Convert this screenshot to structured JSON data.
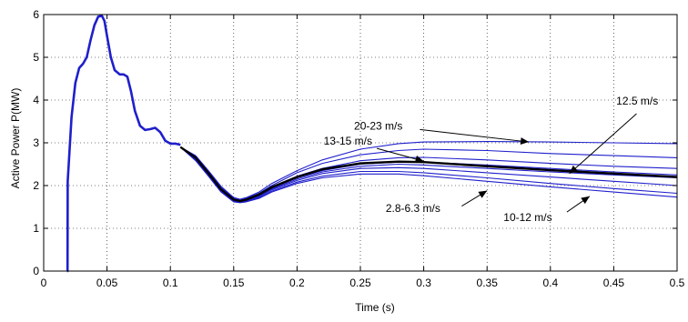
{
  "chart_data": {
    "type": "line",
    "xlabel": "Time (s)",
    "ylabel": "Active Power P(MW)",
    "xlim": [
      0,
      0.5
    ],
    "ylim": [
      0,
      6
    ],
    "xticks": [
      "0",
      "0.05",
      "0.1",
      "0.15",
      "0.2",
      "0.25",
      "0.3",
      "0.35",
      "0.4",
      "0.45",
      "0.5"
    ],
    "yticks": [
      "0",
      "1",
      "2",
      "3",
      "4",
      "5",
      "6"
    ],
    "grid": true,
    "line_color": "#1f1fcc",
    "highlight_color": "#000000",
    "transient": {
      "x": [
        0.0185,
        0.0188,
        0.019,
        0.02,
        0.022,
        0.025,
        0.028,
        0.031,
        0.034,
        0.037,
        0.04,
        0.043,
        0.046,
        0.048,
        0.05,
        0.053,
        0.056,
        0.06,
        0.063,
        0.066,
        0.069,
        0.072,
        0.076,
        0.08,
        0.084,
        0.088,
        0.092,
        0.096,
        0.1,
        0.104,
        0.108
      ],
      "y": [
        0,
        0,
        2.1,
        2.6,
        3.6,
        4.4,
        4.75,
        4.85,
        5.0,
        5.4,
        5.75,
        5.95,
        5.97,
        5.85,
        5.5,
        5.0,
        4.7,
        4.6,
        4.6,
        4.55,
        4.2,
        3.75,
        3.4,
        3.3,
        3.32,
        3.35,
        3.25,
        3.05,
        2.98,
        2.98,
        2.95
      ]
    },
    "series": [
      {
        "x": [
          0.108,
          0.12,
          0.13,
          0.14,
          0.15,
          0.155,
          0.16,
          0.17,
          0.18,
          0.2,
          0.22,
          0.25,
          0.28,
          0.3,
          0.35,
          0.4,
          0.45,
          0.5
        ],
        "y": [
          2.9,
          2.7,
          2.35,
          1.98,
          1.72,
          1.68,
          1.72,
          1.85,
          2.05,
          2.35,
          2.6,
          2.85,
          2.98,
          3.02,
          3.03,
          3.02,
          3.0,
          2.98
        ]
      },
      {
        "x": [
          0.108,
          0.12,
          0.13,
          0.14,
          0.15,
          0.155,
          0.16,
          0.17,
          0.18,
          0.2,
          0.22,
          0.25,
          0.28,
          0.3,
          0.35,
          0.4,
          0.45,
          0.5
        ],
        "y": [
          2.9,
          2.68,
          2.32,
          1.95,
          1.7,
          1.66,
          1.7,
          1.82,
          2.0,
          2.3,
          2.52,
          2.72,
          2.82,
          2.85,
          2.82,
          2.75,
          2.7,
          2.65
        ]
      },
      {
        "x": [
          0.108,
          0.12,
          0.13,
          0.14,
          0.15,
          0.155,
          0.16,
          0.17,
          0.18,
          0.2,
          0.22,
          0.25,
          0.28,
          0.3,
          0.35,
          0.4,
          0.45,
          0.5
        ],
        "y": [
          2.9,
          2.65,
          2.3,
          1.92,
          1.68,
          1.64,
          1.68,
          1.8,
          1.97,
          2.22,
          2.4,
          2.58,
          2.65,
          2.66,
          2.6,
          2.52,
          2.45,
          2.4
        ]
      },
      {
        "x": [
          0.108,
          0.12,
          0.13,
          0.14,
          0.15,
          0.155,
          0.16,
          0.17,
          0.18,
          0.2,
          0.22,
          0.25,
          0.28,
          0.3,
          0.35,
          0.4,
          0.45,
          0.5
        ],
        "y": [
          2.9,
          2.65,
          2.28,
          1.9,
          1.66,
          1.63,
          1.66,
          1.78,
          1.94,
          2.18,
          2.35,
          2.5,
          2.55,
          2.55,
          2.48,
          2.4,
          2.32,
          2.25
        ]
      },
      {
        "x": [
          0.108,
          0.12,
          0.13,
          0.14,
          0.15,
          0.155,
          0.16,
          0.17,
          0.18,
          0.2,
          0.22,
          0.25,
          0.28,
          0.3,
          0.35,
          0.4,
          0.45,
          0.5
        ],
        "y": [
          2.9,
          2.62,
          2.26,
          1.88,
          1.65,
          1.62,
          1.65,
          1.76,
          1.92,
          2.15,
          2.32,
          2.45,
          2.5,
          2.48,
          2.4,
          2.32,
          2.25,
          2.18
        ]
      },
      {
        "x": [
          0.108,
          0.12,
          0.13,
          0.14,
          0.15,
          0.155,
          0.16,
          0.17,
          0.18,
          0.2,
          0.22,
          0.25,
          0.28,
          0.3,
          0.35,
          0.4,
          0.45,
          0.5
        ],
        "y": [
          2.9,
          2.6,
          2.25,
          1.87,
          1.64,
          1.62,
          1.64,
          1.74,
          1.9,
          2.12,
          2.28,
          2.4,
          2.42,
          2.4,
          2.3,
          2.2,
          2.1,
          2.0
        ]
      },
      {
        "x": [
          0.108,
          0.12,
          0.13,
          0.14,
          0.15,
          0.155,
          0.16,
          0.17,
          0.18,
          0.2,
          0.22,
          0.25,
          0.28,
          0.3,
          0.35,
          0.4,
          0.45,
          0.5
        ],
        "y": [
          2.9,
          2.6,
          2.24,
          1.86,
          1.63,
          1.61,
          1.63,
          1.72,
          1.87,
          2.08,
          2.22,
          2.33,
          2.33,
          2.3,
          2.18,
          2.05,
          1.93,
          1.82
        ]
      },
      {
        "x": [
          0.108,
          0.12,
          0.13,
          0.14,
          0.15,
          0.155,
          0.16,
          0.17,
          0.18,
          0.2,
          0.22,
          0.25,
          0.28,
          0.3,
          0.35,
          0.4,
          0.45,
          0.5
        ],
        "y": [
          2.9,
          2.58,
          2.22,
          1.85,
          1.62,
          1.6,
          1.62,
          1.7,
          1.85,
          2.05,
          2.18,
          2.27,
          2.27,
          2.23,
          2.1,
          1.97,
          1.85,
          1.73
        ]
      }
    ],
    "highlight": {
      "x": [
        0.108,
        0.12,
        0.13,
        0.14,
        0.15,
        0.155,
        0.16,
        0.17,
        0.18,
        0.2,
        0.22,
        0.25,
        0.28,
        0.3,
        0.35,
        0.4,
        0.45,
        0.5
      ],
      "y": [
        2.9,
        2.65,
        2.29,
        1.91,
        1.67,
        1.64,
        1.67,
        1.79,
        1.96,
        2.2,
        2.38,
        2.52,
        2.56,
        2.55,
        2.45,
        2.36,
        2.28,
        2.2
      ]
    },
    "annotations": [
      {
        "text": "20-23 m/s",
        "x": 0.245,
        "y": 3.31,
        "ax": 0.297,
        "ay": 3.31,
        "hx": 0.383,
        "hy": 3.02
      },
      {
        "text": "12.5 m/s",
        "x": 0.452,
        "y": 3.89,
        "ax": 0.468,
        "ay": 3.68,
        "hx": 0.415,
        "hy": 2.28
      },
      {
        "text": "13-15 m/s",
        "x": 0.221,
        "y": 2.96,
        "ax": 0.263,
        "ay": 2.87,
        "hx": 0.3,
        "hy": 2.57
      },
      {
        "text": "2.8-6.3 m/s",
        "x": 0.27,
        "y": 1.38,
        "ax": 0.33,
        "ay": 1.52,
        "hx": 0.35,
        "hy": 1.88
      },
      {
        "text": "10-12 m/s",
        "x": 0.363,
        "y": 1.17,
        "ax": 0.413,
        "ay": 1.38,
        "hx": 0.431,
        "hy": 1.75
      }
    ]
  }
}
